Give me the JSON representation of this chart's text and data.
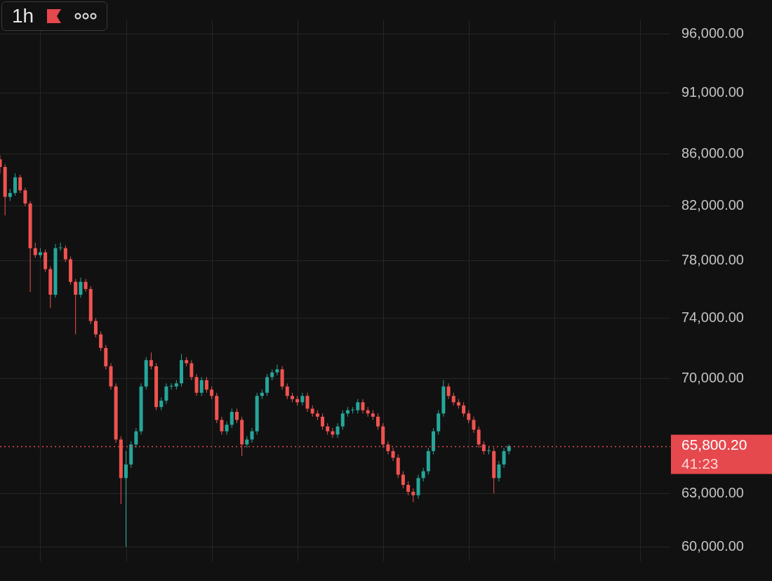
{
  "chart_data": {
    "type": "candlestick",
    "title": "1h",
    "log": true,
    "grid": true,
    "tick_labels": "y",
    "ylim": [
      59200,
      97300
    ],
    "yticks": [
      {
        "value": 60000,
        "label": "60,000.00"
      },
      {
        "value": 63000,
        "label": "63,000.00"
      },
      {
        "value": 70000,
        "label": "70,000.00"
      },
      {
        "value": 74000,
        "label": "74,000.00"
      },
      {
        "value": 78000,
        "label": "78,000.00"
      },
      {
        "value": 82000,
        "label": "82,000.00"
      },
      {
        "value": 86000,
        "label": "86,000.00"
      },
      {
        "value": 91000,
        "label": "91,000.00"
      },
      {
        "value": 96000,
        "label": "96,000.00"
      }
    ],
    "ref_lines": [
      {
        "axis": "y",
        "value": 65800.2,
        "label": "65,800.20",
        "color": "#e5484d",
        "line_style": "dotted"
      }
    ],
    "annotations": [
      "41:23"
    ],
    "categories": [
      null,
      null,
      null,
      null,
      null,
      null,
      null,
      null,
      null,
      null,
      null,
      null,
      null,
      null,
      null,
      null,
      null,
      null,
      null,
      null,
      null,
      null,
      null,
      null,
      null,
      null,
      null,
      null,
      null,
      null,
      null,
      null,
      null,
      null,
      null,
      null,
      null,
      null,
      null,
      null,
      null,
      null,
      null,
      null,
      null,
      null,
      null,
      null,
      null,
      null,
      null,
      null,
      null,
      null,
      null,
      null,
      null,
      null,
      null,
      null,
      null,
      null,
      null,
      null,
      null,
      null,
      null,
      null,
      null,
      null,
      null,
      null,
      null,
      null,
      null,
      null,
      null,
      null,
      null,
      null,
      null,
      null,
      null,
      null,
      null,
      null,
      null,
      null,
      null,
      null,
      null,
      null,
      null,
      null,
      null,
      null,
      null,
      null,
      null,
      null,
      null,
      null,
      null,
      null,
      null,
      null,
      null,
      null,
      null,
      null,
      null,
      null,
      null,
      null,
      null,
      null,
      null,
      null,
      null,
      null,
      null,
      null,
      null,
      null,
      null,
      null,
      null,
      null,
      null,
      null,
      null,
      null,
      null,
      null
    ],
    "ohlc": [
      [
        85600,
        85900,
        84500,
        85000
      ],
      [
        85000,
        85200,
        81300,
        82700
      ],
      [
        82700,
        83300,
        82400,
        83000
      ],
      [
        83000,
        84500,
        82800,
        84200
      ],
      [
        84200,
        84400,
        83000,
        83200
      ],
      [
        83200,
        83400,
        82000,
        82200
      ],
      [
        82200,
        82400,
        75800,
        78900
      ],
      [
        78900,
        79300,
        78200,
        78400
      ],
      [
        78400,
        78900,
        78200,
        78600
      ],
      [
        78600,
        78800,
        77200,
        77400
      ],
      [
        77400,
        77600,
        74700,
        75600
      ],
      [
        75600,
        79200,
        75400,
        78900
      ],
      [
        78900,
        79300,
        78700,
        78900
      ],
      [
        78900,
        79100,
        77900,
        78100
      ],
      [
        78100,
        78300,
        76300,
        76500
      ],
      [
        76500,
        76700,
        72900,
        75600
      ],
      [
        75600,
        76800,
        75400,
        76500
      ],
      [
        76500,
        76700,
        75800,
        76000
      ],
      [
        76000,
        76200,
        73600,
        73800
      ],
      [
        73800,
        74000,
        72700,
        72900
      ],
      [
        72900,
        73100,
        71800,
        72000
      ],
      [
        72000,
        72200,
        70600,
        70800
      ],
      [
        70800,
        71000,
        69300,
        69500
      ],
      [
        69500,
        69700,
        66000,
        66200
      ],
      [
        66200,
        66400,
        62400,
        63900
      ],
      [
        63900,
        65500,
        60000,
        64700
      ],
      [
        64700,
        66100,
        64500,
        65900
      ],
      [
        65900,
        66900,
        65700,
        66700
      ],
      [
        66700,
        69700,
        66500,
        69500
      ],
      [
        69500,
        71400,
        69300,
        71200
      ],
      [
        71200,
        71700,
        70600,
        70800
      ],
      [
        70800,
        71000,
        68000,
        68200
      ],
      [
        68200,
        68800,
        68000,
        68600
      ],
      [
        68600,
        69700,
        68400,
        69500
      ],
      [
        69500,
        69700,
        69300,
        69500
      ],
      [
        69500,
        69900,
        69300,
        69700
      ],
      [
        69700,
        71600,
        69500,
        71200
      ],
      [
        71200,
        71400,
        70800,
        71000
      ],
      [
        71000,
        71200,
        69900,
        70100
      ],
      [
        70100,
        70300,
        68900,
        69100
      ],
      [
        69100,
        70100,
        68900,
        69900
      ],
      [
        69900,
        70100,
        69100,
        69300
      ],
      [
        69300,
        69500,
        68700,
        68900
      ],
      [
        68900,
        69100,
        67200,
        67400
      ],
      [
        67400,
        67600,
        66500,
        66700
      ],
      [
        66700,
        67300,
        66500,
        67100
      ],
      [
        67100,
        68100,
        66900,
        67900
      ],
      [
        67900,
        68100,
        67200,
        67400
      ],
      [
        67400,
        67600,
        65200,
        65900
      ],
      [
        65900,
        66400,
        65700,
        66200
      ],
      [
        66200,
        66900,
        66000,
        66700
      ],
      [
        66700,
        69100,
        66500,
        68900
      ],
      [
        68900,
        69300,
        68700,
        69100
      ],
      [
        69100,
        70300,
        68900,
        70100
      ],
      [
        70100,
        70600,
        69900,
        70400
      ],
      [
        70400,
        70900,
        70200,
        70600
      ],
      [
        70600,
        70800,
        69300,
        69500
      ],
      [
        69500,
        69700,
        68700,
        68900
      ],
      [
        68900,
        69100,
        68500,
        68700
      ],
      [
        68700,
        68900,
        68300,
        68500
      ],
      [
        68500,
        69100,
        68300,
        68900
      ],
      [
        68900,
        69100,
        67900,
        68100
      ],
      [
        68100,
        68300,
        67600,
        67800
      ],
      [
        67800,
        68000,
        67400,
        67600
      ],
      [
        67600,
        67800,
        66800,
        67000
      ],
      [
        67000,
        67200,
        66500,
        66700
      ],
      [
        66700,
        66900,
        66300,
        66500
      ],
      [
        66500,
        67200,
        66300,
        67000
      ],
      [
        67000,
        68000,
        66800,
        67800
      ],
      [
        67800,
        68200,
        67600,
        68000
      ],
      [
        68000,
        68200,
        67800,
        68000
      ],
      [
        68000,
        68700,
        67800,
        68500
      ],
      [
        68500,
        68700,
        67800,
        68000
      ],
      [
        68000,
        68200,
        67600,
        67800
      ],
      [
        67800,
        68000,
        67400,
        67600
      ],
      [
        67600,
        67800,
        66800,
        67000
      ],
      [
        67000,
        67200,
        65700,
        65900
      ],
      [
        65900,
        66100,
        65300,
        65500
      ],
      [
        65500,
        65700,
        64900,
        65100
      ],
      [
        65100,
        65300,
        63900,
        64100
      ],
      [
        64100,
        64300,
        63300,
        63500
      ],
      [
        63500,
        63700,
        62900,
        63100
      ],
      [
        63100,
        63300,
        62500,
        62900
      ],
      [
        62900,
        64100,
        62700,
        63900
      ],
      [
        63900,
        64500,
        63700,
        64300
      ],
      [
        64300,
        65700,
        64100,
        65500
      ],
      [
        65500,
        66900,
        65300,
        66700
      ],
      [
        66700,
        68000,
        66500,
        67800
      ],
      [
        67800,
        69900,
        67600,
        69500
      ],
      [
        69500,
        69700,
        68700,
        68900
      ],
      [
        68900,
        69100,
        68300,
        68500
      ],
      [
        68500,
        68700,
        68100,
        68300
      ],
      [
        68300,
        68500,
        67600,
        67800
      ],
      [
        67800,
        68000,
        67200,
        67400
      ],
      [
        67400,
        67600,
        66600,
        66800
      ],
      [
        66800,
        67000,
        65700,
        65900
      ],
      [
        65900,
        66100,
        65300,
        65500
      ],
      [
        65500,
        65800,
        65300,
        65500
      ],
      [
        65500,
        65700,
        63000,
        63900
      ],
      [
        63900,
        64900,
        63700,
        64700
      ],
      [
        64700,
        65700,
        64500,
        65500
      ],
      [
        65500,
        65900,
        65300,
        65800.2
      ],
      null,
      null,
      null,
      null,
      null,
      null,
      null,
      null,
      null,
      null,
      null,
      null,
      null,
      null,
      null,
      null,
      null,
      null,
      null,
      null,
      null,
      null,
      null,
      null,
      null,
      null,
      null,
      null,
      null,
      null,
      null,
      null
    ]
  }
}
